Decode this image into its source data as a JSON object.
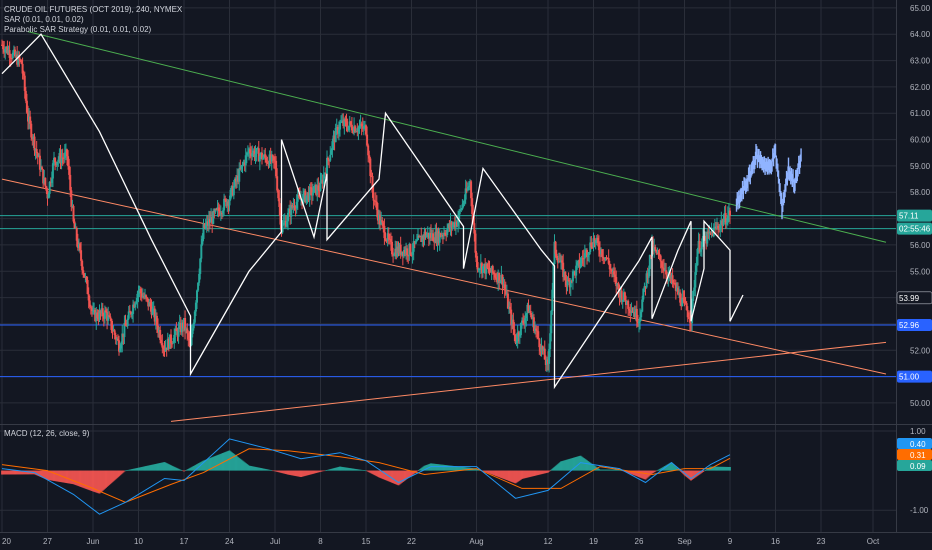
{
  "legend": {
    "symbol": "CRUDE OIL FUTURES (OCT 2019), 240, NYMEX",
    "sar": "SAR (0.01, 0.01, 0.02)",
    "strategy": "Parabolic SAR Strategy (0.01, 0.01, 0.02)",
    "macd": "MACD (12, 26, close, 9)"
  },
  "colors": {
    "background": "#131722",
    "grid": "#2a2e39",
    "candle_up": "#26a69a",
    "candle_down": "#ef5350",
    "sar_line": "#ffffff",
    "down_trendline": "#4caf50",
    "support_trendline": "#ff8a65",
    "horizontal_level": "#2962ff",
    "projection": "#90b4ff",
    "macd_line": "#2196f3",
    "signal_line": "#ff6d00"
  },
  "chart_data": [
    {
      "type": "candlestick",
      "x_axis": {
        "ticks": [
          "20",
          "27",
          "Jun",
          "10",
          "17",
          "24",
          "Jul",
          "8",
          "15",
          "22",
          "Aug",
          "12",
          "19",
          "26",
          "Sep",
          "9",
          "16",
          "23",
          "Oct"
        ],
        "start_date": "2019-05-20",
        "end_date": "2019-10-03"
      },
      "y_axis": {
        "ticks": [
          "65.00",
          "64.00",
          "63.00",
          "62.00",
          "61.00",
          "60.00",
          "59.00",
          "58.00",
          "57.00",
          "56.00",
          "55.00",
          "54.00",
          "53.00",
          "52.00",
          "51.00",
          "50.00"
        ],
        "range": [
          49.2,
          65.3
        ]
      },
      "price_tags": [
        {
          "label": "57.11",
          "value": 57.11,
          "color": "#26a69a",
          "kind": "level"
        },
        {
          "label": "02:55:46",
          "value": 56.62,
          "color": "#26a69a",
          "kind": "timer"
        },
        {
          "label": "53.99",
          "value": 53.99,
          "color": "#131722",
          "kind": "outline"
        },
        {
          "label": "52.96",
          "value": 52.96,
          "color": "#2962ff",
          "kind": "level"
        },
        {
          "label": "51.00",
          "value": 51.0,
          "color": "#2962ff",
          "kind": "level"
        }
      ],
      "horizontal_levels": [
        {
          "value": 57.11,
          "color": "#26a69a"
        },
        {
          "value": 56.62,
          "color": "#26a69a"
        },
        {
          "value": 52.96,
          "color": "#2962ff"
        },
        {
          "value": 51.0,
          "color": "#2962ff"
        }
      ],
      "trendlines": [
        {
          "color": "#4caf50",
          "from": [
            "2019-05-24",
            64.1
          ],
          "to": [
            "2019-10-03",
            56.1
          ]
        },
        {
          "color": "#ff8a65",
          "from": [
            "2019-05-20",
            58.5
          ],
          "to": [
            "2019-10-03",
            51.1
          ]
        },
        {
          "color": "#ff8a65",
          "from": [
            "2019-06-15",
            49.3
          ],
          "to": [
            "2019-10-03",
            52.3
          ]
        }
      ],
      "price_path": [
        [
          "2019-05-20",
          63.6
        ],
        [
          "2019-05-23",
          62.9
        ],
        [
          "2019-05-24",
          60.8
        ],
        [
          "2019-05-27",
          57.9
        ],
        [
          "2019-05-28",
          59.2
        ],
        [
          "2019-05-30",
          59.4
        ],
        [
          "2019-05-31",
          56.8
        ],
        [
          "2019-06-03",
          53.3
        ],
        [
          "2019-06-05",
          53.4
        ],
        [
          "2019-06-07",
          52.2
        ],
        [
          "2019-06-10",
          54.3
        ],
        [
          "2019-06-12",
          53.6
        ],
        [
          "2019-06-14",
          52.1
        ],
        [
          "2019-06-17",
          53.0
        ],
        [
          "2019-06-18",
          52.1
        ],
        [
          "2019-06-20",
          56.6
        ],
        [
          "2019-06-24",
          57.8
        ],
        [
          "2019-06-27",
          59.6
        ],
        [
          "2019-07-01",
          59.1
        ],
        [
          "2019-07-02",
          56.6
        ],
        [
          "2019-07-04",
          57.6
        ],
        [
          "2019-07-08",
          58.2
        ],
        [
          "2019-07-10",
          60.0
        ],
        [
          "2019-07-11",
          60.6
        ],
        [
          "2019-07-15",
          60.4
        ],
        [
          "2019-07-16",
          58.0
        ],
        [
          "2019-07-17",
          57.0
        ],
        [
          "2019-07-19",
          55.8
        ],
        [
          "2019-07-22",
          55.8
        ],
        [
          "2019-07-24",
          56.4
        ],
        [
          "2019-07-26",
          56.3
        ],
        [
          "2019-07-29",
          56.9
        ],
        [
          "2019-07-31",
          58.4
        ],
        [
          "2019-08-01",
          55.3
        ],
        [
          "2019-08-05",
          54.7
        ],
        [
          "2019-08-07",
          52.4
        ],
        [
          "2019-08-09",
          53.6
        ],
        [
          "2019-08-12",
          51.3
        ],
        [
          "2019-08-13",
          55.9
        ],
        [
          "2019-08-15",
          54.5
        ],
        [
          "2019-08-19",
          56.2
        ],
        [
          "2019-08-21",
          55.5
        ],
        [
          "2019-08-23",
          54.2
        ],
        [
          "2019-08-26",
          53.2
        ],
        [
          "2019-08-28",
          55.9
        ],
        [
          "2019-08-30",
          55.1
        ],
        [
          "2019-09-03",
          53.2
        ],
        [
          "2019-09-04",
          55.9
        ],
        [
          "2019-09-06",
          56.4
        ],
        [
          "2019-09-09",
          57.2
        ]
      ],
      "sar_points": [
        [
          "2019-05-20",
          62.5
        ],
        [
          "2019-05-26",
          64.0
        ],
        [
          "2019-06-04",
          60.3
        ],
        [
          "2019-06-12",
          56.2
        ],
        [
          "2019-06-18",
          53.3
        ],
        [
          "2019-06-18",
          51.1
        ],
        [
          "2019-06-27",
          55.0
        ],
        [
          "2019-07-02",
          56.5
        ],
        [
          "2019-07-02",
          60.0
        ],
        [
          "2019-07-07",
          56.3
        ],
        [
          "2019-07-09",
          58.7
        ],
        [
          "2019-07-09",
          56.2
        ],
        [
          "2019-07-17",
          58.5
        ],
        [
          "2019-07-18",
          61.0
        ],
        [
          "2019-07-30",
          56.7
        ],
        [
          "2019-07-30",
          55.1
        ],
        [
          "2019-08-02",
          58.9
        ],
        [
          "2019-08-11",
          55.8
        ],
        [
          "2019-08-13",
          55.2
        ],
        [
          "2019-08-13",
          50.6
        ],
        [
          "2019-08-26",
          55.4
        ],
        [
          "2019-08-28",
          56.3
        ],
        [
          "2019-08-28",
          53.2
        ],
        [
          "2019-09-01",
          55.8
        ],
        [
          "2019-09-03",
          56.9
        ],
        [
          "2019-09-03",
          53.1
        ],
        [
          "2019-09-05",
          55.1
        ],
        [
          "2019-09-05",
          56.9
        ],
        [
          "2019-09-09",
          55.8
        ],
        [
          "2019-09-09",
          53.1
        ],
        [
          "2019-09-11",
          54.1
        ]
      ],
      "projection": [
        [
          "2019-09-10",
          57.5
        ],
        [
          "2019-09-12",
          58.6
        ],
        [
          "2019-09-13",
          59.4
        ],
        [
          "2019-09-15",
          58.9
        ],
        [
          "2019-09-16",
          59.5
        ],
        [
          "2019-09-17",
          57.4
        ],
        [
          "2019-09-18",
          58.9
        ],
        [
          "2019-09-19",
          58.3
        ],
        [
          "2019-09-20",
          59.4
        ]
      ]
    },
    {
      "type": "macd",
      "y_axis": {
        "ticks": [
          "1.00",
          "-1.00"
        ],
        "range": [
          -1.55,
          1.15
        ]
      },
      "value_tags": [
        {
          "label": "0.40",
          "value": 0.4,
          "color": "#2196f3"
        },
        {
          "label": "0.31",
          "value": 0.31,
          "color": "#ff6d00"
        },
        {
          "label": "0.09",
          "value": 0.09,
          "color": "#26a69a"
        }
      ],
      "macd_path": [
        [
          "2019-05-20",
          0.05
        ],
        [
          "2019-05-25",
          -0.05
        ],
        [
          "2019-05-31",
          -0.6
        ],
        [
          "2019-06-04",
          -1.1
        ],
        [
          "2019-06-08",
          -0.8
        ],
        [
          "2019-06-14",
          -0.2
        ],
        [
          "2019-06-17",
          -0.25
        ],
        [
          "2019-06-24",
          0.8
        ],
        [
          "2019-06-30",
          0.55
        ],
        [
          "2019-07-05",
          0.3
        ],
        [
          "2019-07-11",
          0.45
        ],
        [
          "2019-07-15",
          0.25
        ],
        [
          "2019-07-20",
          -0.3
        ],
        [
          "2019-07-25",
          0.1
        ],
        [
          "2019-08-01",
          0.1
        ],
        [
          "2019-08-07",
          -0.7
        ],
        [
          "2019-08-12",
          -0.5
        ],
        [
          "2019-08-17",
          0.2
        ],
        [
          "2019-08-23",
          0.05
        ],
        [
          "2019-08-27",
          -0.3
        ],
        [
          "2019-08-31",
          0.2
        ],
        [
          "2019-09-03",
          -0.2
        ],
        [
          "2019-09-06",
          0.15
        ],
        [
          "2019-09-09",
          0.4
        ]
      ],
      "signal_path": [
        [
          "2019-05-20",
          0.15
        ],
        [
          "2019-05-27",
          0.0
        ],
        [
          "2019-06-03",
          -0.45
        ],
        [
          "2019-06-08",
          -0.8
        ],
        [
          "2019-06-15",
          -0.35
        ],
        [
          "2019-06-20",
          -0.05
        ],
        [
          "2019-06-27",
          0.55
        ],
        [
          "2019-07-03",
          0.5
        ],
        [
          "2019-07-11",
          0.35
        ],
        [
          "2019-07-17",
          0.2
        ],
        [
          "2019-07-24",
          -0.1
        ],
        [
          "2019-08-01",
          0.05
        ],
        [
          "2019-08-08",
          -0.45
        ],
        [
          "2019-08-14",
          -0.45
        ],
        [
          "2019-08-20",
          0.1
        ],
        [
          "2019-08-28",
          -0.1
        ],
        [
          "2019-09-02",
          0.05
        ],
        [
          "2019-09-06",
          0.05
        ],
        [
          "2019-09-09",
          0.31
        ]
      ]
    }
  ]
}
